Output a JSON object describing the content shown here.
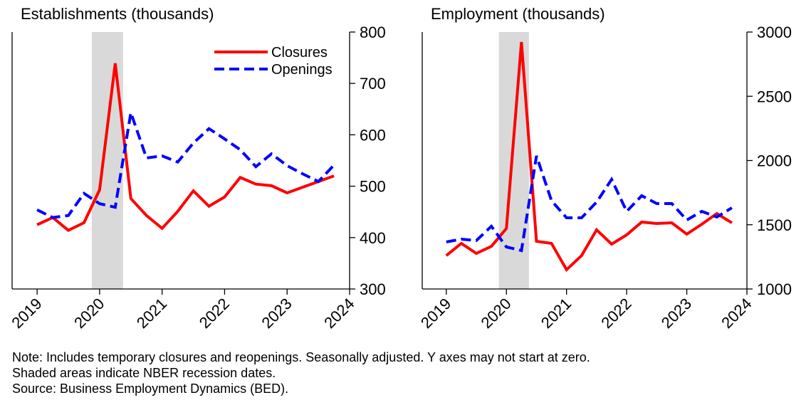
{
  "chart_data": [
    {
      "type": "line",
      "title": "Establishments (thousands)",
      "x": [
        2019,
        2019.25,
        2019.5,
        2019.75,
        2020,
        2020.25,
        2020.5,
        2020.75,
        2021,
        2021.25,
        2021.5,
        2021.75,
        2022,
        2022.25,
        2022.5,
        2022.75,
        2023,
        2023.25,
        2023.5,
        2023.75
      ],
      "xlim": [
        2018.6,
        2024
      ],
      "xticks": [
        2019,
        2020,
        2021,
        2022,
        2023,
        2024
      ],
      "ylim": [
        300,
        800
      ],
      "yticks": [
        300,
        400,
        500,
        600,
        700,
        800
      ],
      "y_axis": "right",
      "shaded": [
        2019.875,
        2020.375
      ],
      "shade_color": "#d9d9d9",
      "legend": "upper right",
      "series": [
        {
          "name": "Closures",
          "color": "#ff0000",
          "dash": "solid",
          "values": [
            425,
            439,
            414,
            429,
            493,
            739,
            476,
            443,
            418,
            451,
            491,
            461,
            479,
            517,
            504,
            501,
            487,
            498,
            509,
            520
          ]
        },
        {
          "name": "Openings",
          "color": "#0000ff",
          "dash": "dashed",
          "values": [
            454,
            439,
            443,
            486,
            466,
            459,
            643,
            555,
            559,
            547,
            584,
            612,
            592,
            571,
            538,
            563,
            540,
            524,
            509,
            541
          ]
        }
      ]
    },
    {
      "type": "line",
      "title": "Employment (thousands)",
      "x": [
        2019,
        2019.25,
        2019.5,
        2019.75,
        2020,
        2020.25,
        2020.5,
        2020.75,
        2021,
        2021.25,
        2021.5,
        2021.75,
        2022,
        2022.25,
        2022.5,
        2022.75,
        2023,
        2023.25,
        2023.5,
        2023.75
      ],
      "xlim": [
        2018.6,
        2024
      ],
      "xticks": [
        2019,
        2020,
        2021,
        2022,
        2023,
        2024
      ],
      "ylim": [
        1000,
        3000
      ],
      "yticks": [
        1000,
        1500,
        2000,
        2500,
        3000
      ],
      "y_axis": "right",
      "shaded": [
        2019.875,
        2020.375
      ],
      "shade_color": "#d9d9d9",
      "series": [
        {
          "name": "Closures",
          "color": "#ff0000",
          "dash": "solid",
          "values": [
            1260,
            1355,
            1277,
            1332,
            1471,
            2922,
            1371,
            1355,
            1150,
            1260,
            1460,
            1349,
            1421,
            1521,
            1510,
            1515,
            1427,
            1504,
            1587,
            1515
          ]
        },
        {
          "name": "Openings",
          "color": "#0000ff",
          "dash": "dashed",
          "values": [
            1366,
            1388,
            1377,
            1488,
            1327,
            1299,
            2036,
            1687,
            1554,
            1554,
            1676,
            1853,
            1604,
            1726,
            1665,
            1665,
            1537,
            1604,
            1560,
            1632
          ]
        }
      ]
    }
  ],
  "notes": [
    "Note: Includes temporary closures and reopenings. Seasonally adjusted. Y axes may not start at zero.",
    "Shaded areas indicate NBER recession dates.",
    "Source: Business Employment Dynamics (BED)."
  ]
}
